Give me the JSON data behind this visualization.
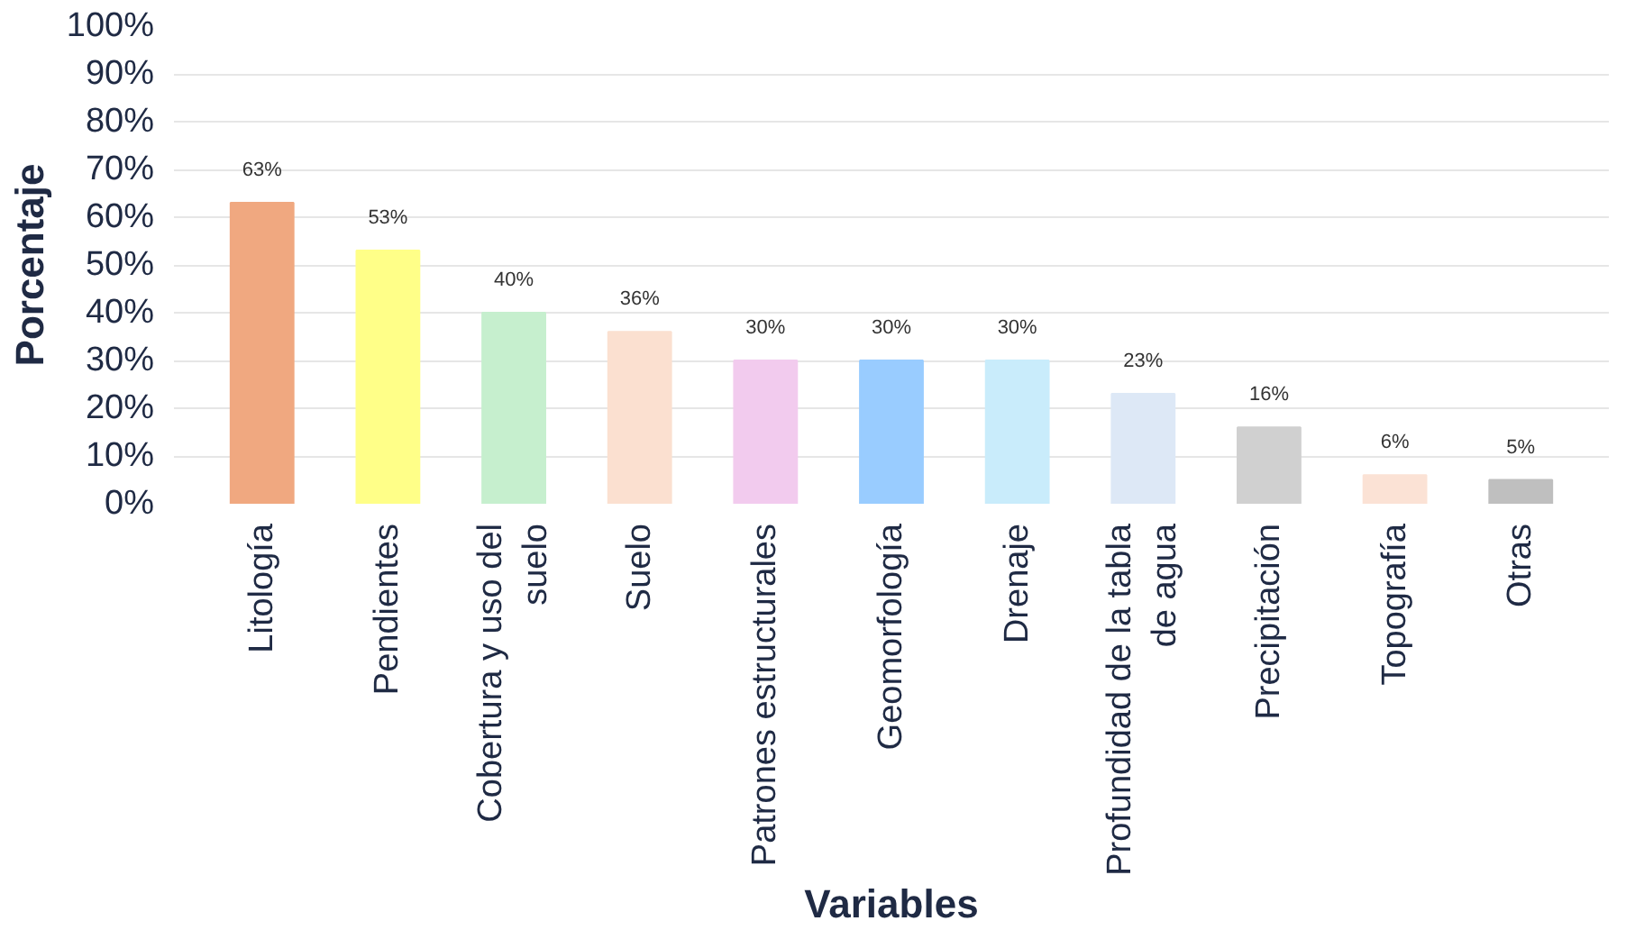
{
  "chart_data": {
    "type": "bar",
    "xlabel": "Variables",
    "ylabel": "Porcentaje",
    "categories": [
      "Litología",
      "Pendientes",
      "Cobertura y uso del suelo",
      "Suelo",
      "Patrones estructurales",
      "Geomorfología",
      "Drenaje",
      "Profundidad de la tabla de agua",
      "Precipitación",
      "Topografía",
      "Otras"
    ],
    "values": [
      63,
      53,
      40,
      36,
      30,
      30,
      30,
      23,
      16,
      6,
      5
    ],
    "value_labels": [
      "63%",
      "53%",
      "40%",
      "36%",
      "30%",
      "30%",
      "30%",
      "23%",
      "16%",
      "6%",
      "5%"
    ],
    "colors": [
      "#f0a880",
      "#ffff88",
      "#c6efce",
      "#fbe0d0",
      "#f2cbee",
      "#99ccff",
      "#c9ecfb",
      "#dde8f6",
      "#d0d0d0",
      "#fbe2d5",
      "#bfbfbf"
    ],
    "ylim": [
      0,
      100
    ],
    "yticks": [
      {
        "value": 0,
        "label": "0%"
      },
      {
        "value": 10,
        "label": "10%"
      },
      {
        "value": 20,
        "label": "20%"
      },
      {
        "value": 30,
        "label": "30%"
      },
      {
        "value": 40,
        "label": "40%"
      },
      {
        "value": 50,
        "label": "50%"
      },
      {
        "value": 60,
        "label": "60%"
      },
      {
        "value": 70,
        "label": "70%"
      },
      {
        "value": 80,
        "label": "80%"
      },
      {
        "value": 90,
        "label": "90%"
      },
      {
        "value": 100,
        "label": "100%"
      }
    ],
    "grid": "y"
  }
}
